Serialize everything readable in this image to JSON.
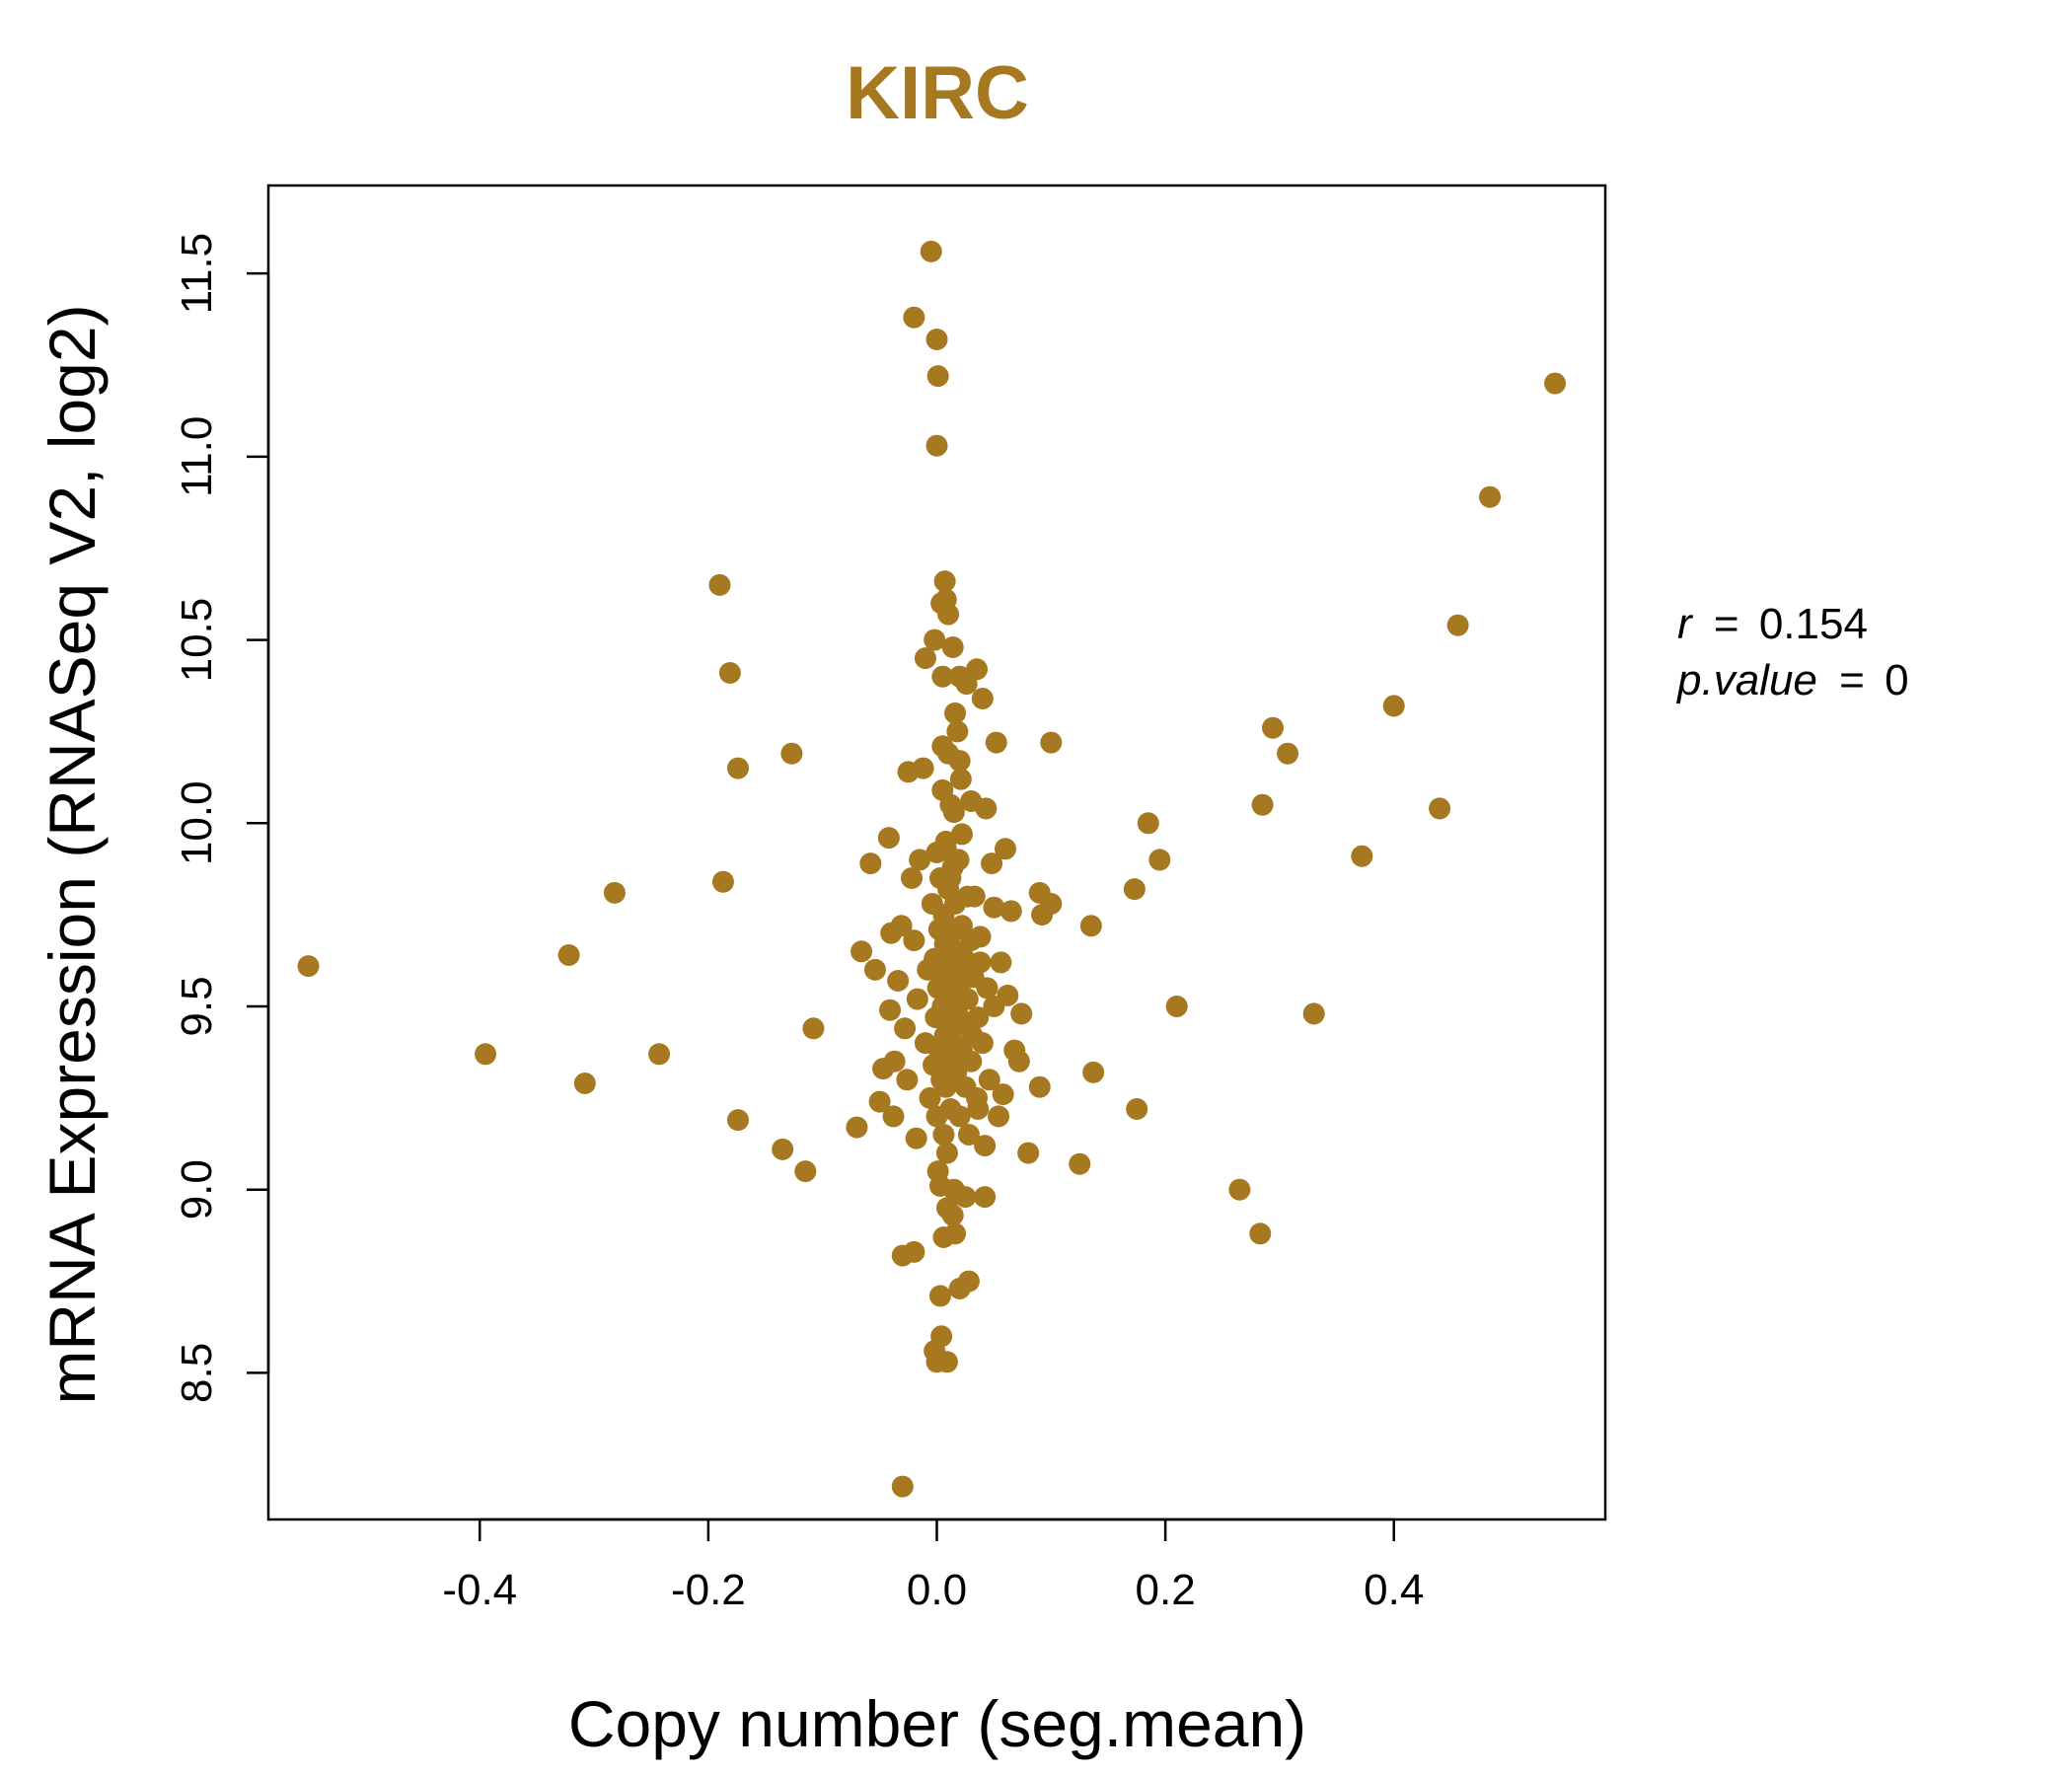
{
  "chart_data": {
    "type": "scatter",
    "title": "KIRC",
    "xlabel": "Copy number (seg.mean)",
    "ylabel": "mRNA Expression (RNASeq V2, log2)",
    "xlim": [
      -0.585,
      0.585
    ],
    "ylim": [
      8.1,
      11.74
    ],
    "x_ticks": [
      -0.4,
      -0.2,
      0.0,
      0.2,
      0.4
    ],
    "x_tick_labels": [
      "-0.4",
      "-0.2",
      "0.0",
      "0.2",
      "0.4"
    ],
    "y_ticks": [
      8.5,
      9.0,
      9.5,
      10.0,
      10.5,
      11.0,
      11.5
    ],
    "y_tick_labels": [
      "8.5",
      "9.0",
      "9.5",
      "10.0",
      "10.5",
      "11.0",
      "11.5"
    ],
    "grid": false,
    "point_color": "#a67820",
    "title_color": "#a67820",
    "stats": {
      "r_label": "r",
      "r_value": "0.154",
      "p_label": "p.value",
      "p_value": "0"
    },
    "points": [
      [
        -0.55,
        9.61
      ],
      [
        -0.395,
        9.37
      ],
      [
        -0.322,
        9.64
      ],
      [
        -0.308,
        9.29
      ],
      [
        -0.282,
        9.81
      ],
      [
        -0.243,
        9.37
      ],
      [
        -0.19,
        10.65
      ],
      [
        -0.187,
        9.84
      ],
      [
        -0.181,
        10.41
      ],
      [
        -0.174,
        10.15
      ],
      [
        -0.174,
        9.19
      ],
      [
        -0.127,
        10.19
      ],
      [
        -0.135,
        9.11
      ],
      [
        -0.115,
        9.05
      ],
      [
        -0.108,
        9.44
      ],
      [
        -0.07,
        9.17
      ],
      [
        -0.066,
        9.65
      ],
      [
        -0.058,
        9.89
      ],
      [
        -0.054,
        9.6
      ],
      [
        -0.05,
        9.24
      ],
      [
        -0.047,
        9.33
      ],
      [
        -0.042,
        9.96
      ],
      [
        -0.041,
        9.49
      ],
      [
        -0.04,
        9.7
      ],
      [
        -0.038,
        9.2
      ],
      [
        -0.037,
        9.35
      ],
      [
        -0.034,
        9.57
      ],
      [
        -0.031,
        9.72
      ],
      [
        -0.028,
        9.44
      ],
      [
        -0.026,
        9.3
      ],
      [
        -0.025,
        10.14
      ],
      [
        -0.022,
        9.85
      ],
      [
        -0.02,
        9.68
      ],
      [
        -0.018,
        9.14
      ],
      [
        -0.017,
        9.52
      ],
      [
        -0.015,
        9.9
      ],
      [
        -0.012,
        10.15
      ],
      [
        -0.01,
        9.4
      ],
      [
        -0.01,
        10.45
      ],
      [
        -0.008,
        9.6
      ],
      [
        -0.006,
        9.25
      ],
      [
        -0.004,
        9.78
      ],
      [
        -0.003,
        9.34
      ],
      [
        -0.002,
        10.5
      ],
      [
        -0.002,
        9.63
      ],
      [
        -0.001,
        9.47
      ],
      [
        0.0,
        9.92
      ],
      [
        0.0,
        9.2
      ],
      [
        0.001,
        9.55
      ],
      [
        0.001,
        9.05
      ],
      [
        0.002,
        9.71
      ],
      [
        0.002,
        9.38
      ],
      [
        0.003,
        9.85
      ],
      [
        0.003,
        9.01
      ],
      [
        0.004,
        9.6
      ],
      [
        0.004,
        9.3
      ],
      [
        0.005,
        10.21
      ],
      [
        0.005,
        9.5
      ],
      [
        0.006,
        9.75
      ],
      [
        0.006,
        9.15
      ],
      [
        0.007,
        9.42
      ],
      [
        0.007,
        9.67
      ],
      [
        0.008,
        9.95
      ],
      [
        0.008,
        9.28
      ],
      [
        0.009,
        9.55
      ],
      [
        0.009,
        9.1
      ],
      [
        0.01,
        9.82
      ],
      [
        0.01,
        9.45
      ],
      [
        0.011,
        9.62
      ],
      [
        0.011,
        9.35
      ],
      [
        0.012,
        10.05
      ],
      [
        0.012,
        9.22
      ],
      [
        0.013,
        9.7
      ],
      [
        0.013,
        9.5
      ],
      [
        0.014,
        9.88
      ],
      [
        0.014,
        9.4
      ],
      [
        0.015,
        9.58
      ],
      [
        0.015,
        9.0
      ],
      [
        0.016,
        10.3
      ],
      [
        0.016,
        9.78
      ],
      [
        0.017,
        9.32
      ],
      [
        0.018,
        9.65
      ],
      [
        0.018,
        9.48
      ],
      [
        0.019,
        9.9
      ],
      [
        0.02,
        9.2
      ],
      [
        0.02,
        9.55
      ],
      [
        0.021,
        10.12
      ],
      [
        0.022,
        9.38
      ],
      [
        0.022,
        9.72
      ],
      [
        0.023,
        9.45
      ],
      [
        0.024,
        9.6
      ],
      [
        0.025,
        9.28
      ],
      [
        0.026,
        10.38
      ],
      [
        0.027,
        9.52
      ],
      [
        0.028,
        9.15
      ],
      [
        0.03,
        9.68
      ],
      [
        0.03,
        9.35
      ],
      [
        0.032,
        9.58
      ],
      [
        0.033,
        9.8
      ],
      [
        0.035,
        9.25
      ],
      [
        0.036,
        9.47
      ],
      [
        0.038,
        9.62
      ],
      [
        0.04,
        9.4
      ],
      [
        0.042,
        9.12
      ],
      [
        0.044,
        9.55
      ],
      [
        0.046,
        9.3
      ],
      [
        0.048,
        9.89
      ],
      [
        0.05,
        9.77
      ],
      [
        0.05,
        9.5
      ],
      [
        0.052,
        10.22
      ],
      [
        0.054,
        9.2
      ],
      [
        0.056,
        9.62
      ],
      [
        0.058,
        9.26
      ],
      [
        0.06,
        9.93
      ],
      [
        0.062,
        9.53
      ],
      [
        0.065,
        9.76
      ],
      [
        0.068,
        9.38
      ],
      [
        0.072,
        9.35
      ],
      [
        0.074,
        9.48
      ],
      [
        0.08,
        9.1
      ],
      [
        0.09,
        9.81
      ],
      [
        0.092,
        9.75
      ],
      [
        0.09,
        9.28
      ],
      [
        0.1,
        9.78
      ],
      [
        0.1,
        10.22
      ],
      [
        0.125,
        9.07
      ],
      [
        0.135,
        9.72
      ],
      [
        0.137,
        9.32
      ],
      [
        0.173,
        9.82
      ],
      [
        0.175,
        9.22
      ],
      [
        0.185,
        10.0
      ],
      [
        0.195,
        9.9
      ],
      [
        0.21,
        9.5
      ],
      [
        0.265,
        9.0
      ],
      [
        0.283,
        8.88
      ],
      [
        0.285,
        10.05
      ],
      [
        0.294,
        10.26
      ],
      [
        0.307,
        10.19
      ],
      [
        0.33,
        9.48
      ],
      [
        0.372,
        9.91
      ],
      [
        0.4,
        10.32
      ],
      [
        0.44,
        10.04
      ],
      [
        0.456,
        10.54
      ],
      [
        0.484,
        10.89
      ],
      [
        0.541,
        11.2
      ],
      [
        -0.005,
        11.56
      ],
      [
        -0.02,
        11.38
      ],
      [
        0.0,
        11.32
      ],
      [
        0.001,
        11.22
      ],
      [
        0.0,
        11.03
      ],
      [
        0.007,
        10.66
      ],
      [
        0.008,
        10.61
      ],
      [
        0.004,
        10.6
      ],
      [
        0.01,
        10.57
      ],
      [
        0.014,
        10.48
      ],
      [
        0.005,
        10.4
      ],
      [
        0.02,
        10.4
      ],
      [
        0.035,
        10.42
      ],
      [
        0.04,
        10.34
      ],
      [
        0.018,
        10.25
      ],
      [
        0.01,
        10.19
      ],
      [
        0.02,
        10.17
      ],
      [
        0.043,
        10.04
      ],
      [
        0.015,
        10.03
      ],
      [
        0.03,
        10.06
      ],
      [
        0.005,
        10.09
      ],
      [
        0.022,
        9.97
      ],
      [
        0.008,
        9.93
      ],
      [
        0.027,
        9.8
      ],
      [
        0.038,
        9.69
      ],
      [
        0.012,
        9.85
      ],
      [
        0.024,
        9.63
      ],
      [
        0.031,
        9.42
      ],
      [
        0.036,
        9.22
      ],
      [
        0.014,
        8.93
      ],
      [
        0.025,
        8.98
      ],
      [
        0.042,
        8.98
      ],
      [
        0.016,
        8.88
      ],
      [
        0.006,
        8.87
      ],
      [
        0.009,
        8.95
      ],
      [
        0.02,
        8.73
      ],
      [
        0.028,
        8.75
      ],
      [
        0.003,
        8.71
      ],
      [
        0.004,
        8.6
      ],
      [
        -0.002,
        8.56
      ],
      [
        0.0,
        8.53
      ],
      [
        0.009,
        8.53
      ],
      [
        -0.02,
        8.83
      ],
      [
        -0.03,
        8.82
      ],
      [
        -0.03,
        8.19
      ]
    ]
  }
}
